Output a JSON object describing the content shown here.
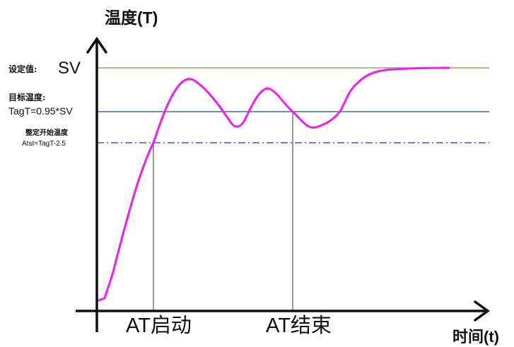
{
  "axes": {
    "y_label": "温度(T)",
    "x_label": "时间(t)"
  },
  "levels": {
    "sv": {
      "label_cn": "设定值:",
      "label_en": "SV",
      "color": "#8caf57"
    },
    "target": {
      "label_cn": "目标温度:",
      "label_formula": "TagT=0.95*SV",
      "color": "#3d6fa6"
    },
    "tuning_start": {
      "label_cn": "整定开始温度",
      "label_formula": "Atst=TagT-2.5",
      "color": "#3b59e0"
    }
  },
  "markers": {
    "at_start": "AT启动",
    "at_end": "AT结束"
  },
  "curve": {
    "color": "#f01df0"
  },
  "colors": {
    "axis": "#111111",
    "marker_line": "#333333"
  }
}
